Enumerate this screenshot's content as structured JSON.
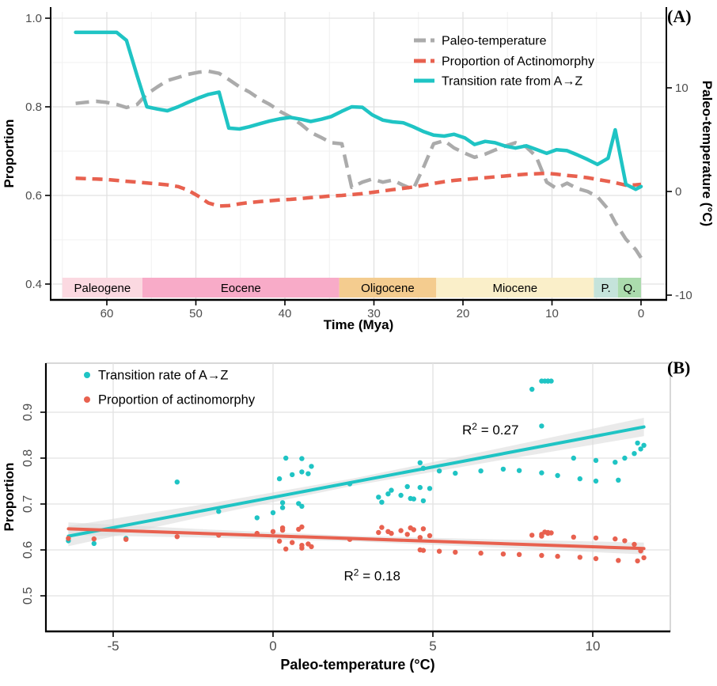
{
  "figure_labels": {
    "panel_a": "(A)",
    "panel_b": "(B)"
  },
  "colors": {
    "cyan": "#1FC4C4",
    "red": "#E8614F",
    "gray": "#ABABAB",
    "band_fill": "#D8D8D8",
    "grid_major": "#E2E2E2",
    "grid_minor": "#F0F0F0",
    "tick_text": "#4D4D4D",
    "axis_line": "#000000",
    "panel_border": "#BEBEBE"
  },
  "chart_data": [
    {
      "id": "panel_a",
      "type": "line",
      "xlabel": "Time (Mya)",
      "ylabel_left": "Proportion",
      "ylabel_right": "Paleo-temperature (°C)",
      "xlim": [
        66.5,
        -3.0
      ],
      "ylim_left": [
        0.4,
        1.0
      ],
      "ylim_right": [
        -10,
        15
      ],
      "x_ticks": [
        60,
        50,
        40,
        30,
        20,
        10,
        0
      ],
      "x_tick_labels": [
        "60",
        "50",
        "40",
        "30",
        "20",
        "10",
        "0"
      ],
      "x_minor_ticks": [
        65,
        55,
        45,
        35,
        25,
        15,
        5
      ],
      "y_ticks_left": [
        1.0,
        0.8,
        0.6,
        0.4
      ],
      "y_tick_labels_left": [
        "1.0",
        "0.8",
        "0.6",
        "0.4"
      ],
      "y_minor_ticks_left": [
        0.9,
        0.7,
        0.5
      ],
      "y_ticks_right": [
        10,
        0,
        -10
      ],
      "y_tick_labels_right": [
        "10",
        "0",
        "-10"
      ],
      "grid": true,
      "legend_position": "top-right-inside",
      "legend": [
        {
          "label": "Paleo-temperature",
          "color": "#ABABAB",
          "dash": "dashed"
        },
        {
          "label": "Proportion of Actinomorphy",
          "color": "#E8614F",
          "dash": "dashed"
        },
        {
          "label": "Transition rate from A→Z",
          "color": "#1FC4C4",
          "dash": "solid"
        }
      ],
      "geo_bands": [
        {
          "label": "Paleogene",
          "from": 65.0,
          "to": 56.0,
          "color": "#FBD9E1"
        },
        {
          "label": "Eocene",
          "from": 56.0,
          "to": 33.9,
          "color": "#F8ABC8"
        },
        {
          "label": "Oligocene",
          "from": 33.9,
          "to": 23.0,
          "color": "#F4CC8F"
        },
        {
          "label": "Miocene",
          "from": 23.0,
          "to": 5.3,
          "color": "#FAEFC9"
        },
        {
          "label": "P.",
          "from": 5.3,
          "to": 2.6,
          "color": "#C5E3DB"
        },
        {
          "label": "Q.",
          "from": 2.6,
          "to": 0.0,
          "color": "#ABDBAD"
        }
      ],
      "series": {
        "time_mya": [
          63.5,
          62.4,
          61.2,
          60.1,
          58.9,
          57.8,
          56.6,
          55.5,
          54.3,
          53.2,
          52.0,
          50.9,
          49.7,
          48.6,
          47.4,
          46.3,
          45.1,
          44.0,
          42.8,
          41.7,
          40.5,
          39.4,
          38.2,
          37.1,
          35.9,
          34.8,
          33.6,
          32.5,
          31.3,
          30.2,
          29.0,
          27.9,
          26.7,
          25.6,
          24.4,
          23.3,
          22.1,
          21.0,
          19.8,
          18.7,
          17.5,
          16.4,
          15.2,
          14.1,
          12.9,
          11.8,
          10.6,
          9.5,
          8.3,
          7.2,
          6.0,
          4.9,
          3.7,
          2.9,
          1.7,
          0.6,
          0.0
        ],
        "paleo_temperature_C": [
          8.5,
          8.6,
          8.7,
          8.6,
          8.4,
          8.1,
          8.4,
          9.4,
          10.1,
          10.7,
          11.0,
          11.3,
          11.5,
          11.6,
          11.4,
          10.8,
          10.1,
          9.6,
          8.9,
          8.4,
          7.7,
          7.2,
          6.5,
          5.7,
          5.2,
          4.7,
          4.6,
          0.4,
          0.9,
          1.2,
          0.9,
          1.1,
          0.6,
          0.2,
          2.4,
          4.6,
          4.9,
          4.2,
          3.7,
          3.3,
          3.6,
          4.0,
          4.4,
          4.7,
          4.3,
          3.4,
          0.9,
          0.3,
          0.8,
          0.3,
          0.0,
          -0.5,
          -1.7,
          -3.0,
          -4.6,
          -5.6,
          -6.4
        ],
        "proportion_actinomorphy": [
          0.639,
          0.638,
          0.637,
          0.636,
          0.634,
          0.632,
          0.63,
          0.628,
          0.626,
          0.624,
          0.62,
          0.612,
          0.598,
          0.583,
          0.576,
          0.577,
          0.581,
          0.584,
          0.586,
          0.588,
          0.59,
          0.591,
          0.593,
          0.595,
          0.597,
          0.599,
          0.6,
          0.602,
          0.604,
          0.607,
          0.61,
          0.613,
          0.616,
          0.619,
          0.623,
          0.627,
          0.631,
          0.634,
          0.636,
          0.638,
          0.64,
          0.642,
          0.644,
          0.646,
          0.648,
          0.649,
          0.65,
          0.648,
          0.645,
          0.643,
          0.64,
          0.636,
          0.632,
          0.629,
          0.623,
          0.624,
          0.625
        ],
        "transition_rate_A_to_Z": [
          0.968,
          0.968,
          0.968,
          0.968,
          0.968,
          0.95,
          0.87,
          0.8,
          0.795,
          0.791,
          0.8,
          0.81,
          0.82,
          0.828,
          0.833,
          0.752,
          0.75,
          0.755,
          0.762,
          0.768,
          0.773,
          0.776,
          0.772,
          0.767,
          0.772,
          0.778,
          0.79,
          0.8,
          0.799,
          0.782,
          0.77,
          0.766,
          0.764,
          0.755,
          0.744,
          0.736,
          0.734,
          0.738,
          0.73,
          0.715,
          0.722,
          0.719,
          0.711,
          0.707,
          0.712,
          0.704,
          0.695,
          0.703,
          0.701,
          0.692,
          0.681,
          0.67,
          0.684,
          0.748,
          0.625,
          0.614,
          0.62
        ]
      }
    },
    {
      "id": "panel_b",
      "type": "scatter",
      "xlabel": "Paleo-temperature (°C)",
      "ylabel": "Proportion",
      "xlim": [
        -7.1,
        12.4
      ],
      "ylim": [
        0.45,
        1.0
      ],
      "x_ticks": [
        -5,
        0,
        5,
        10
      ],
      "x_tick_labels": [
        "-5",
        "0",
        "5",
        "10"
      ],
      "y_ticks": [
        0.9,
        0.8,
        0.7,
        0.6,
        0.5
      ],
      "y_tick_labels": [
        "0.9",
        "0.8",
        "0.7",
        "0.6",
        "0.5"
      ],
      "grid": true,
      "points_source": "panel_a series: x = paleo_temperature_C, y = transition_rate_A_to_Z and proportion_actinomorphy",
      "legend": [
        {
          "label": "Transition rate of A→Z",
          "color": "#1FC4C4",
          "marker": "dot"
        },
        {
          "label": "Proportion of actinomorphy",
          "color": "#E8614F",
          "marker": "dot"
        }
      ],
      "series": [
        {
          "name": "transition_rate_A_to_Z",
          "color": "#1FC4C4",
          "r_squared": 0.27,
          "regression": {
            "x1": -6.4,
            "y1": 0.63,
            "x2": 11.6,
            "y2": 0.868
          },
          "band": {
            "x": [
              -6.4,
              -2.0,
              2.5,
              7.0,
              11.6
            ],
            "half_width": [
              0.022,
              0.013,
              0.008,
              0.013,
              0.02
            ]
          }
        },
        {
          "name": "proportion_actinomorphy",
          "color": "#E8614F",
          "r_squared": 0.18,
          "regression": {
            "x1": -6.4,
            "y1": 0.646,
            "x2": 11.6,
            "y2": 0.603
          },
          "band": {
            "x": [
              -6.4,
              -2.0,
              2.5,
              7.0,
              11.6
            ],
            "half_width": [
              0.014,
              0.009,
              0.006,
              0.009,
              0.013
            ]
          }
        }
      ],
      "annotations": [
        {
          "base": "R",
          "sup": "2",
          "rest": " = 0.27",
          "x_temp": 6.8,
          "y_prop": 0.852
        },
        {
          "base": "R",
          "sup": "2",
          "rest": " = 0.18",
          "x_temp": 3.1,
          "y_prop": 0.534
        }
      ]
    }
  ]
}
